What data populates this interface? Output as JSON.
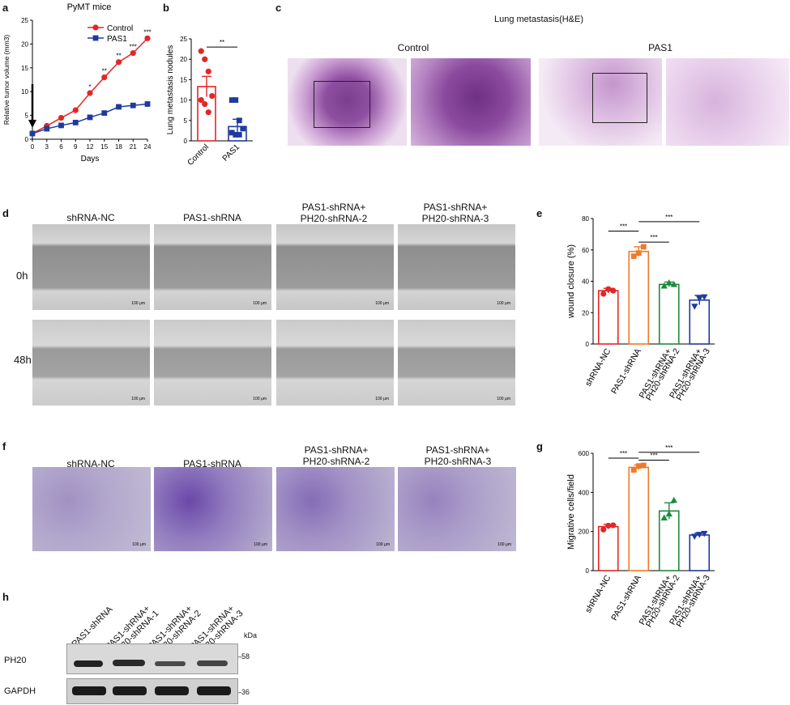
{
  "labels": {
    "a": "a",
    "b": "b",
    "c": "c",
    "d": "d",
    "e": "e",
    "f": "f",
    "g": "g",
    "h": "h"
  },
  "panel_a": {
    "title": "PyMT mice"
  },
  "panel_c": {
    "title": "Lung metastasis(H&E)",
    "groups": [
      "Control",
      "PAS1"
    ]
  },
  "panel_d": {
    "columns": [
      "shRNA-NC",
      "PAS1-shRNA",
      "PAS1-shRNA+\nPH20-shRNA-2",
      "PAS1-shRNA+\nPH20-shRNA-3"
    ],
    "rows": [
      "0h",
      "48h"
    ],
    "scale": "100 μm"
  },
  "panel_f": {
    "columns": [
      "shRNA-NC",
      "PAS1-shRNA",
      "PAS1-shRNA+\nPH20-shRNA-2",
      "PAS1-shRNA+\nPH20-shRNA-3"
    ],
    "scale": "100 μm"
  },
  "panel_h": {
    "lanes": [
      "PAS1-shRNA",
      "PAS1-shRNA+\nPH20-shRNA-1",
      "PAS1-shRNA+\nPH20-shRNA-2",
      "PAS1-shRNA+\nPH20-shRNA-3"
    ],
    "kda": "kDa",
    "proteins": [
      "PH20",
      "GAPDH"
    ],
    "markers": [
      "58",
      "36"
    ]
  },
  "chart_data": [
    {
      "id": "a",
      "type": "line",
      "title": "PyMT mice",
      "xlabel": "Days",
      "ylabel": "Relative tumor volume (mm3)",
      "x": [
        0,
        3,
        6,
        9,
        12,
        15,
        18,
        21,
        24
      ],
      "xlim": [
        0,
        24
      ],
      "ylim": [
        0,
        25
      ],
      "xticks": [
        "0",
        "3",
        "6",
        "9",
        "12",
        "15",
        "18",
        "21",
        "24"
      ],
      "yticks": [
        "0",
        "5",
        "10",
        "15",
        "20",
        "25"
      ],
      "series": [
        {
          "name": "Control",
          "color": "#e32626",
          "values": [
            1.2,
            2.8,
            4.5,
            6.1,
            9.7,
            13,
            16.2,
            18.1,
            21.2
          ]
        },
        {
          "name": "PAS1",
          "color": "#1f3a9e",
          "values": [
            1.2,
            2.2,
            2.9,
            3.5,
            4.6,
            5.5,
            6.8,
            7.1,
            7.4
          ]
        }
      ],
      "significance": [
        {
          "x": 12,
          "label": "*"
        },
        {
          "x": 15,
          "label": "**"
        },
        {
          "x": 18,
          "label": "**"
        },
        {
          "x": 21,
          "label": "***"
        },
        {
          "x": 24,
          "label": "***"
        }
      ]
    },
    {
      "id": "b",
      "type": "bar",
      "ylabel": "Lung metastasis nodules",
      "categories": [
        "Control",
        "PAS1"
      ],
      "values": [
        13.3,
        3.5
      ],
      "errors": [
        2.5,
        1.8
      ],
      "ylim": [
        0,
        25
      ],
      "yticks": [
        "0",
        "5",
        "10",
        "15",
        "20",
        "25"
      ],
      "colors": [
        "#e32626",
        "#1f3a9e"
      ],
      "points": [
        [
          22,
          20,
          17,
          11,
          10,
          9,
          7
        ],
        [
          10,
          10,
          5,
          3,
          2,
          1.5,
          1.5
        ]
      ],
      "significance": "**"
    },
    {
      "id": "e",
      "type": "bar",
      "ylabel": "wound closure (%)",
      "categories": [
        "shRNA-NC",
        "PAS1-shRNA",
        "PAS1-shRNA+\nPH20-shRNA-2",
        "PAS1-shRNA+\nPH20-shRNA-3"
      ],
      "values": [
        34,
        59,
        38,
        28
      ],
      "errors": [
        1.5,
        3,
        1.5,
        3
      ],
      "ylim": [
        0,
        80
      ],
      "yticks": [
        "0",
        "20",
        "40",
        "60",
        "80"
      ],
      "colors": [
        "#e32626",
        "#f07a2b",
        "#1e8a3c",
        "#1f3a9e"
      ],
      "points": [
        [
          32,
          35,
          34
        ],
        [
          56,
          58,
          62
        ],
        [
          37,
          39,
          38
        ],
        [
          24,
          29,
          30
        ]
      ],
      "significance": "***"
    },
    {
      "id": "g",
      "type": "bar",
      "ylabel": "Migrative cells/field",
      "categories": [
        "shRNA-NC",
        "PAS1-shRNA",
        "PAS1-shRNA+\nPH20-shRNA-2",
        "PAS1-shRNA+\nPH20-shRNA-3"
      ],
      "values": [
        225,
        528,
        305,
        182
      ],
      "errors": [
        12,
        12,
        42,
        10
      ],
      "ylim": [
        0,
        600
      ],
      "yticks": [
        "0",
        "200",
        "400",
        "600"
      ],
      "colors": [
        "#e32626",
        "#f07a2b",
        "#1e8a3c",
        "#1f3a9e"
      ],
      "points": [
        [
          210,
          230,
          232
        ],
        [
          515,
          535,
          538
        ],
        [
          270,
          290,
          360
        ],
        [
          175,
          185,
          190
        ]
      ],
      "significance": "***"
    }
  ]
}
